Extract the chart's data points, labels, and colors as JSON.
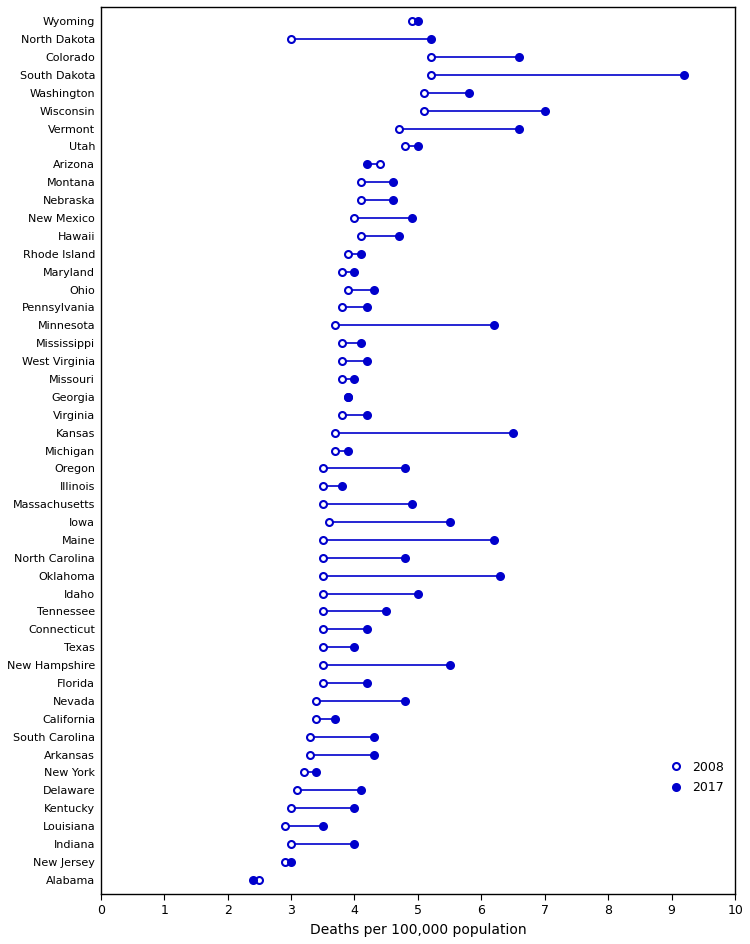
{
  "states": [
    "Wyoming",
    "North Dakota",
    "Colorado",
    "South Dakota",
    "Washington",
    "Wisconsin",
    "Vermont",
    "Utah",
    "Arizona",
    "Montana",
    "Nebraska",
    "New Mexico",
    "Hawaii",
    "Rhode Island",
    "Maryland",
    "Ohio",
    "Pennsylvania",
    "Minnesota",
    "Mississippi",
    "West Virginia",
    "Missouri",
    "Georgia",
    "Virginia",
    "Kansas",
    "Michigan",
    "Oregon",
    "Illinois",
    "Massachusetts",
    "Iowa",
    "Maine",
    "North Carolina",
    "Oklahoma",
    "Idaho",
    "Tennessee",
    "Connecticut",
    "Texas",
    "New Hampshire",
    "Florida",
    "Nevada",
    "California",
    "South Carolina",
    "Arkansas",
    "New York",
    "Delaware",
    "Kentucky",
    "Louisiana",
    "Indiana",
    "New Jersey",
    "Alabama"
  ],
  "val_2008": [
    4.9,
    3.0,
    5.2,
    5.2,
    5.1,
    5.1,
    4.7,
    4.8,
    4.4,
    4.1,
    4.1,
    4.0,
    4.1,
    3.9,
    3.8,
    3.9,
    3.8,
    3.7,
    3.8,
    3.8,
    3.8,
    3.9,
    3.8,
    3.7,
    3.7,
    3.5,
    3.5,
    3.5,
    3.6,
    3.5,
    3.5,
    3.5,
    3.5,
    3.5,
    3.5,
    3.5,
    3.5,
    3.5,
    3.4,
    3.4,
    3.3,
    3.3,
    3.2,
    3.1,
    3.0,
    2.9,
    3.0,
    2.9,
    2.5
  ],
  "val_2017": [
    5.0,
    5.2,
    6.6,
    9.2,
    5.8,
    7.0,
    6.6,
    5.0,
    4.2,
    4.6,
    4.6,
    4.9,
    4.7,
    4.1,
    4.0,
    4.3,
    4.2,
    6.2,
    4.1,
    4.2,
    4.0,
    3.9,
    4.2,
    6.5,
    3.9,
    4.8,
    3.8,
    4.9,
    5.5,
    6.2,
    4.8,
    6.3,
    5.0,
    4.5,
    4.2,
    4.0,
    5.5,
    4.2,
    4.8,
    3.7,
    4.3,
    4.3,
    3.4,
    4.1,
    4.0,
    3.5,
    4.0,
    3.0,
    2.4
  ],
  "color": "#0000CC",
  "xlabel": "Deaths per 100,000 population",
  "xlim": [
    0,
    10
  ],
  "xticks": [
    0,
    1,
    2,
    3,
    4,
    5,
    6,
    7,
    8,
    9,
    10
  ],
  "legend_2008": "2008",
  "legend_2017": "2017"
}
